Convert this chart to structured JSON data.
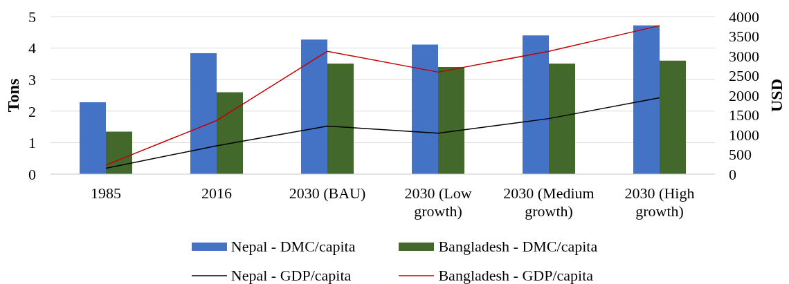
{
  "chart_data": {
    "type": "bar",
    "categories": [
      "1985",
      "2016",
      "2030 (BAU)",
      "2030 (Low growth)",
      "2030 (Medium growth)",
      "2030 (High growth)"
    ],
    "series": [
      {
        "name": "Nepal - DMC/capita",
        "color": "#4472c4",
        "values": [
          2.28,
          3.84,
          4.27,
          4.11,
          4.4,
          4.72
        ]
      },
      {
        "name": "Bangladesh - DMC/capita",
        "color": "#43682b",
        "values": [
          1.35,
          2.6,
          3.51,
          3.4,
          3.51,
          3.6
        ]
      },
      {
        "name": "Nepal - GDP/capita",
        "type": "line",
        "axis": "y2",
        "color": "#000000",
        "values": [
          150,
          720,
          1220,
          1040,
          1410,
          1940
        ]
      },
      {
        "name": "Bangladesh - GDP/capita",
        "type": "line",
        "axis": "y2",
        "color": "#c00000",
        "values": [
          230,
          1360,
          3120,
          2590,
          3120,
          3770
        ]
      }
    ],
    "ylabel": "Tons",
    "y2label": "USD",
    "ylim": [
      0,
      5
    ],
    "yticks": [
      0,
      1,
      2,
      3,
      4,
      5
    ],
    "y2lim": [
      0,
      4000
    ],
    "y2ticks": [
      0,
      500,
      1000,
      1500,
      2000,
      2500,
      3000,
      3500,
      4000
    ],
    "grid": "y",
    "legend": "bottom",
    "marker": "none",
    "line_style": "solid"
  }
}
